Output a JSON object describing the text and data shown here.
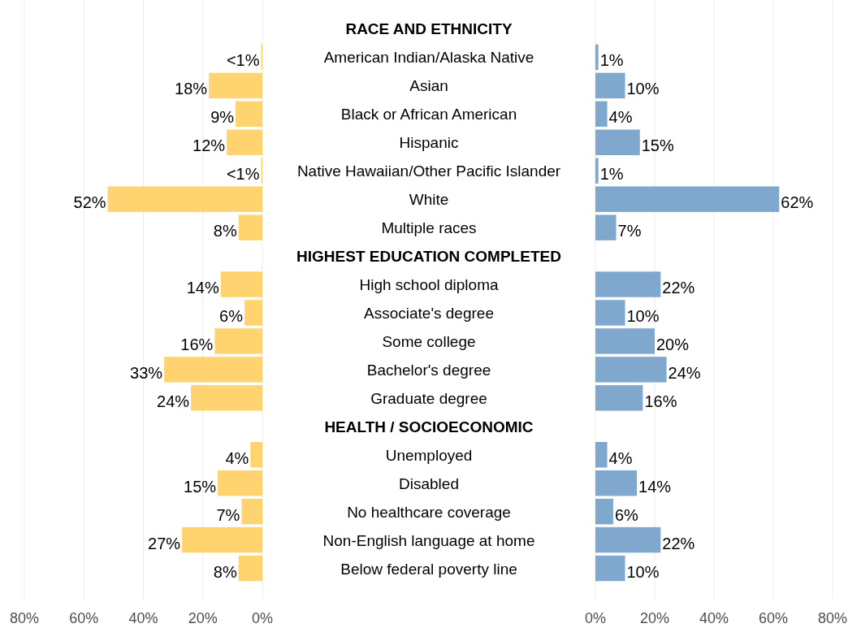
{
  "chart_data": [
    {
      "type": "bar",
      "orientation": "horizontal",
      "xlim": [
        80,
        0
      ],
      "xticks": [
        {
          "value": 80,
          "label": "80%"
        },
        {
          "value": 60,
          "label": "60%"
        },
        {
          "value": 40,
          "label": "40%"
        },
        {
          "value": 20,
          "label": "20%"
        },
        {
          "value": 0,
          "label": "0%"
        }
      ],
      "grid": "x",
      "color": "#ffd470",
      "categories": [
        "RACE AND ETHNICITY",
        "American Indian/Alaska Native",
        "Asian",
        "Black or African American",
        "Hispanic",
        "Native Hawaiian/Other Pacific Islander",
        "White",
        "Multiple races",
        "HIGHEST EDUCATION COMPLETED",
        "High school diploma",
        "Associate's degree",
        "Some college",
        "Bachelor's degree",
        "Graduate degree",
        "HEALTH / SOCIOECONOMIC",
        "Unemployed",
        "Disabled",
        "No healthcare coverage",
        "Non-English language at home",
        "Below federal poverty line"
      ],
      "values": [
        null,
        0.4,
        18,
        9,
        12,
        0.4,
        52,
        8,
        null,
        14,
        6,
        16,
        33,
        24,
        null,
        4,
        15,
        7,
        27,
        8
      ],
      "value_labels": [
        null,
        "<1%",
        "18%",
        "9%",
        "12%",
        "<1%",
        "52%",
        "8%",
        null,
        "14%",
        "6%",
        "16%",
        "33%",
        "24%",
        null,
        "4%",
        "15%",
        "7%",
        "27%",
        "8%"
      ]
    },
    {
      "type": "bar",
      "orientation": "horizontal",
      "xlim": [
        0,
        80
      ],
      "xticks": [
        {
          "value": 0,
          "label": "0%"
        },
        {
          "value": 20,
          "label": "20%"
        },
        {
          "value": 40,
          "label": "40%"
        },
        {
          "value": 60,
          "label": "60%"
        },
        {
          "value": 80,
          "label": "80%"
        }
      ],
      "grid": "x",
      "color": "#80a8cf",
      "tick_labels": "x",
      "values": [
        null,
        1,
        10,
        4,
        15,
        1,
        62,
        7,
        null,
        22,
        10,
        20,
        24,
        16,
        null,
        4,
        14,
        6,
        22,
        10
      ],
      "value_labels": [
        null,
        "1%",
        "10%",
        "4%",
        "15%",
        "1%",
        "62%",
        "7%",
        null,
        "22%",
        "10%",
        "20%",
        "24%",
        "16%",
        null,
        "4%",
        "14%",
        "6%",
        "22%",
        "10%"
      ]
    }
  ]
}
